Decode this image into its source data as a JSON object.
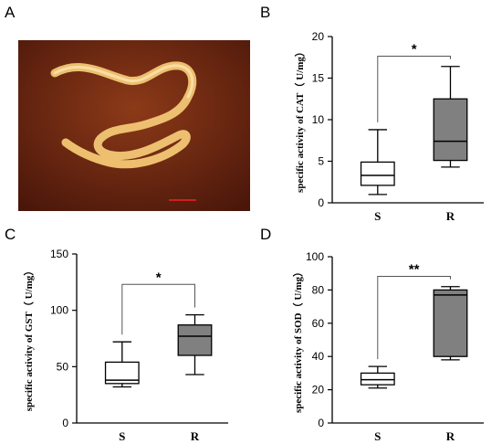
{
  "panels": {
    "a": "A",
    "b": "B",
    "c": "C",
    "d": "D"
  },
  "colors": {
    "box_s": "#ffffff",
    "box_r": "#808080",
    "line": "#000000",
    "photo_bg": "#7a2a10",
    "worm": "#f3c775",
    "scale_bar": "#cc2020"
  },
  "chart_data": [
    {
      "type": "box",
      "panel": "B",
      "ylabel": "specific activity of CAT（ U/mg）",
      "categories": [
        "S",
        "R"
      ],
      "ylim": [
        0,
        20
      ],
      "yticks": [
        0,
        5,
        10,
        15,
        20
      ],
      "series": [
        {
          "category": "S",
          "min": 1.0,
          "q1": 2.1,
          "median": 3.3,
          "q3": 4.9,
          "max": 8.8
        },
        {
          "category": "R",
          "min": 4.3,
          "q1": 5.1,
          "median": 7.4,
          "q3": 12.5,
          "max": 16.4
        }
      ],
      "significance": "*"
    },
    {
      "type": "box",
      "panel": "C",
      "ylabel": "specific activity of GST（ U/mg）",
      "categories": [
        "S",
        "R"
      ],
      "ylim": [
        0,
        150
      ],
      "yticks": [
        0,
        50,
        100,
        150
      ],
      "series": [
        {
          "category": "S",
          "min": 32,
          "q1": 35,
          "median": 38,
          "q3": 54,
          "max": 72
        },
        {
          "category": "R",
          "min": 43,
          "q1": 60,
          "median": 77,
          "q3": 87,
          "max": 96
        }
      ],
      "significance": "*"
    },
    {
      "type": "box",
      "panel": "D",
      "ylabel": "specific activity of SOD（ U/mg）",
      "categories": [
        "S",
        "R"
      ],
      "ylim": [
        0,
        100
      ],
      "yticks": [
        0,
        20,
        40,
        60,
        80,
        100
      ],
      "series": [
        {
          "category": "S",
          "min": 21,
          "q1": 23,
          "median": 26,
          "q3": 30,
          "max": 34
        },
        {
          "category": "R",
          "min": 38,
          "q1": 40,
          "median": 77,
          "q3": 80,
          "max": 82
        }
      ],
      "significance": "**"
    }
  ]
}
